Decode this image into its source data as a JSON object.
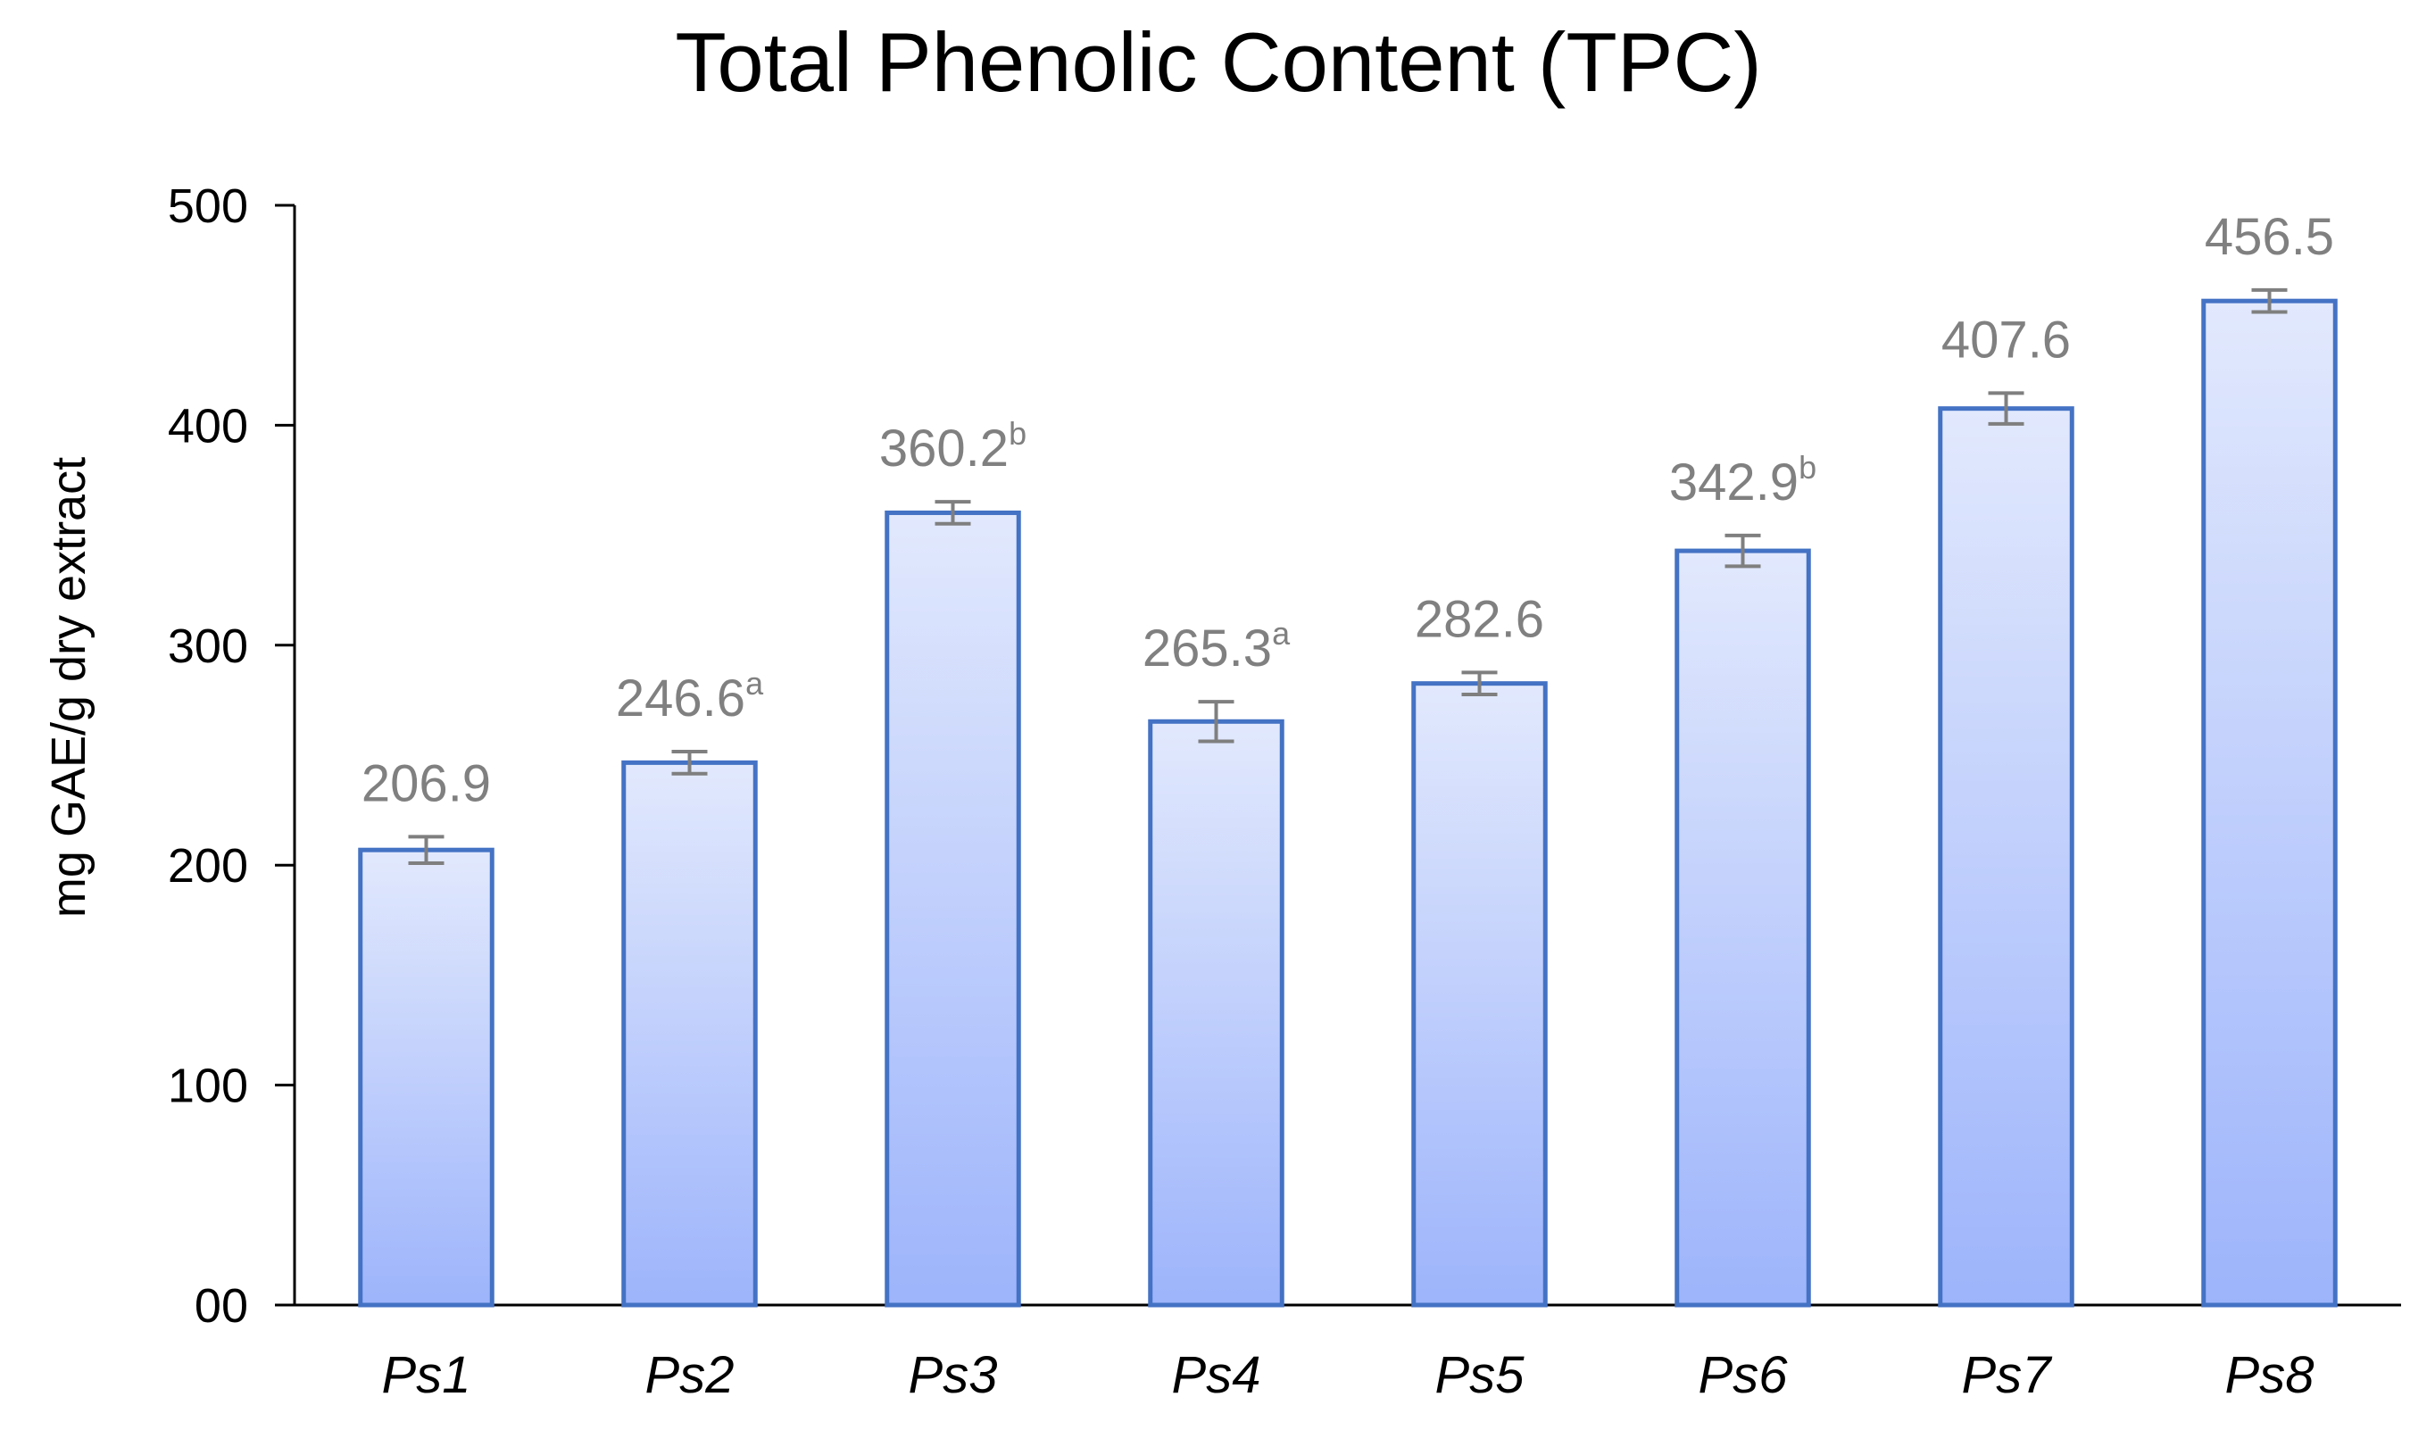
{
  "chart_data": {
    "type": "bar",
    "title": "Total Phenolic Content (TPC)",
    "xlabel": "",
    "ylabel": "mg GAE/g dry extract",
    "categories": [
      "Ps1",
      "Ps2",
      "Ps3",
      "Ps4",
      "Ps5",
      "Ps6",
      "Ps7",
      "Ps8"
    ],
    "values": [
      206.9,
      246.6,
      360.2,
      265.3,
      282.6,
      342.9,
      407.6,
      456.5
    ],
    "error": [
      6,
      5,
      5,
      9,
      5,
      7,
      7,
      5
    ],
    "data_labels": [
      {
        "value": "206.9",
        "superscript": ""
      },
      {
        "value": "246.6",
        "superscript": "a"
      },
      {
        "value": "360.2",
        "superscript": "b"
      },
      {
        "value": "265.3",
        "superscript": "a"
      },
      {
        "value": "282.6",
        "superscript": ""
      },
      {
        "value": "342.9",
        "superscript": "b"
      },
      {
        "value": "407.6",
        "superscript": ""
      },
      {
        "value": "456.5",
        "superscript": ""
      }
    ],
    "yticks": [
      "00",
      "100",
      "200",
      "300",
      "400",
      "500"
    ],
    "ytick_values": [
      0,
      100,
      200,
      300,
      400,
      500
    ],
    "ylim": [
      0,
      500
    ],
    "grid": false,
    "legend": "none",
    "colors": {
      "bar_fill_top": "#e2e9fd",
      "bar_fill_bottom": "#9db4fb",
      "bar_border": "#4472c4",
      "error_bar": "#7f7f7f",
      "data_label": "#808080",
      "axis": "#000000"
    }
  }
}
